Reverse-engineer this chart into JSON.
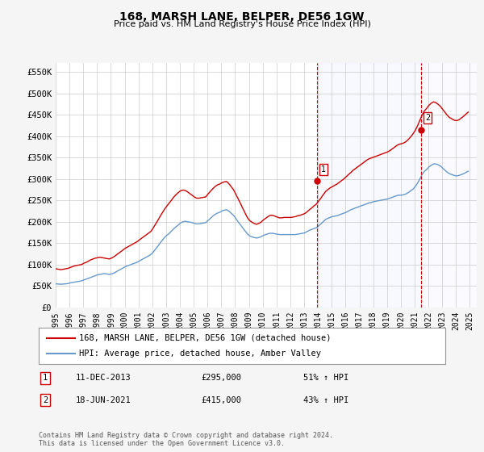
{
  "title": "168, MARSH LANE, BELPER, DE56 1GW",
  "subtitle": "Price paid vs. HM Land Registry's House Price Index (HPI)",
  "ylabel": "",
  "ylim": [
    0,
    570000
  ],
  "yticks": [
    0,
    50000,
    100000,
    150000,
    200000,
    250000,
    300000,
    350000,
    400000,
    450000,
    500000,
    550000
  ],
  "ytick_labels": [
    "£0",
    "£50K",
    "£100K",
    "£150K",
    "£200K",
    "£250K",
    "£300K",
    "£350K",
    "£400K",
    "£450K",
    "£500K",
    "£550K"
  ],
  "xlim_start": 1995.0,
  "xlim_end": 2025.5,
  "xtick_years": [
    1995,
    1996,
    1997,
    1998,
    1999,
    2000,
    2001,
    2002,
    2003,
    2004,
    2005,
    2006,
    2007,
    2008,
    2009,
    2010,
    2011,
    2012,
    2013,
    2014,
    2015,
    2016,
    2017,
    2018,
    2019,
    2020,
    2021,
    2022,
    2023,
    2024,
    2025
  ],
  "purchase1_x": 2013.94,
  "purchase1_y": 295000,
  "purchase1_label": "1",
  "purchase2_x": 2021.46,
  "purchase2_y": 415000,
  "purchase2_label": "2",
  "red_line_color": "#cc0000",
  "blue_line_color": "#6699cc",
  "vline_color": "#cc0000",
  "annotation_box_color": "#cc0000",
  "grid_color": "#cccccc",
  "background_chart": "#ffffff",
  "background_fig": "#f5f5f5",
  "legend_label_red": "168, MARSH LANE, BELPER, DE56 1GW (detached house)",
  "legend_label_blue": "HPI: Average price, detached house, Amber Valley",
  "annotation1_date": "11-DEC-2013",
  "annotation1_price": "£295,000",
  "annotation1_hpi": "51% ↑ HPI",
  "annotation2_date": "18-JUN-2021",
  "annotation2_price": "£415,000",
  "annotation2_hpi": "43% ↑ HPI",
  "footer": "Contains HM Land Registry data © Crown copyright and database right 2024.\nThis data is licensed under the Open Government Licence v3.0.",
  "hpi_data": {
    "years": [
      1995.04,
      1995.21,
      1995.38,
      1995.54,
      1995.71,
      1995.88,
      1996.04,
      1996.21,
      1996.38,
      1996.54,
      1996.71,
      1996.88,
      1997.04,
      1997.21,
      1997.38,
      1997.54,
      1997.71,
      1997.88,
      1998.04,
      1998.21,
      1998.38,
      1998.54,
      1998.71,
      1998.88,
      1999.04,
      1999.21,
      1999.38,
      1999.54,
      1999.71,
      1999.88,
      2000.04,
      2000.21,
      2000.38,
      2000.54,
      2000.71,
      2000.88,
      2001.04,
      2001.21,
      2001.38,
      2001.54,
      2001.71,
      2001.88,
      2002.04,
      2002.21,
      2002.38,
      2002.54,
      2002.71,
      2002.88,
      2003.04,
      2003.21,
      2003.38,
      2003.54,
      2003.71,
      2003.88,
      2004.04,
      2004.21,
      2004.38,
      2004.54,
      2004.71,
      2004.88,
      2005.04,
      2005.21,
      2005.38,
      2005.54,
      2005.71,
      2005.88,
      2006.04,
      2006.21,
      2006.38,
      2006.54,
      2006.71,
      2006.88,
      2007.04,
      2007.21,
      2007.38,
      2007.54,
      2007.71,
      2007.88,
      2008.04,
      2008.21,
      2008.38,
      2008.54,
      2008.71,
      2008.88,
      2009.04,
      2009.21,
      2009.38,
      2009.54,
      2009.71,
      2009.88,
      2010.04,
      2010.21,
      2010.38,
      2010.54,
      2010.71,
      2010.88,
      2011.04,
      2011.21,
      2011.38,
      2011.54,
      2011.71,
      2011.88,
      2012.04,
      2012.21,
      2012.38,
      2012.54,
      2012.71,
      2012.88,
      2013.04,
      2013.21,
      2013.38,
      2013.54,
      2013.71,
      2013.88,
      2014.04,
      2014.21,
      2014.38,
      2014.54,
      2014.71,
      2014.88,
      2015.04,
      2015.21,
      2015.38,
      2015.54,
      2015.71,
      2015.88,
      2016.04,
      2016.21,
      2016.38,
      2016.54,
      2016.71,
      2016.88,
      2017.04,
      2017.21,
      2017.38,
      2017.54,
      2017.71,
      2017.88,
      2018.04,
      2018.21,
      2018.38,
      2018.54,
      2018.71,
      2018.88,
      2019.04,
      2019.21,
      2019.38,
      2019.54,
      2019.71,
      2019.88,
      2020.04,
      2020.21,
      2020.38,
      2020.54,
      2020.71,
      2020.88,
      2021.04,
      2021.21,
      2021.38,
      2021.54,
      2021.71,
      2021.88,
      2022.04,
      2022.21,
      2022.38,
      2022.54,
      2022.71,
      2022.88,
      2023.04,
      2023.21,
      2023.38,
      2023.54,
      2023.71,
      2023.88,
      2024.04,
      2024.21,
      2024.38,
      2024.54,
      2024.71,
      2024.88
    ],
    "values": [
      55000,
      54500,
      54000,
      54500,
      55000,
      55500,
      57000,
      58000,
      59000,
      60000,
      61000,
      62000,
      64000,
      66000,
      68000,
      70000,
      72000,
      74000,
      76000,
      77000,
      78000,
      79000,
      78000,
      77000,
      78000,
      80000,
      83000,
      86000,
      89000,
      92000,
      95000,
      97000,
      99000,
      101000,
      103000,
      105000,
      108000,
      111000,
      114000,
      117000,
      120000,
      123000,
      128000,
      135000,
      142000,
      149000,
      156000,
      163000,
      168000,
      172000,
      178000,
      183000,
      188000,
      192000,
      197000,
      200000,
      201000,
      200000,
      199000,
      198000,
      196000,
      195000,
      195000,
      196000,
      197000,
      198000,
      203000,
      208000,
      213000,
      217000,
      220000,
      222000,
      225000,
      227000,
      228000,
      225000,
      220000,
      215000,
      208000,
      200000,
      193000,
      186000,
      179000,
      172000,
      167000,
      165000,
      163000,
      162000,
      163000,
      165000,
      168000,
      170000,
      172000,
      173000,
      173000,
      172000,
      171000,
      170000,
      170000,
      170000,
      170000,
      170000,
      170000,
      170000,
      170000,
      171000,
      172000,
      173000,
      174000,
      177000,
      180000,
      182000,
      184000,
      186000,
      190000,
      195000,
      200000,
      205000,
      208000,
      210000,
      212000,
      213000,
      214000,
      216000,
      218000,
      220000,
      222000,
      225000,
      228000,
      230000,
      232000,
      234000,
      236000,
      238000,
      240000,
      242000,
      244000,
      245000,
      247000,
      248000,
      249000,
      250000,
      251000,
      252000,
      253000,
      255000,
      257000,
      259000,
      261000,
      262000,
      262000,
      263000,
      265000,
      268000,
      272000,
      276000,
      282000,
      290000,
      300000,
      310000,
      318000,
      322000,
      328000,
      332000,
      335000,
      335000,
      333000,
      330000,
      325000,
      320000,
      315000,
      312000,
      310000,
      308000,
      307000,
      308000,
      310000,
      312000,
      315000,
      318000
    ]
  },
  "price_paid_data": {
    "years": [
      1995.04,
      1995.21,
      1995.38,
      1995.54,
      1995.71,
      1995.88,
      1996.04,
      1996.21,
      1996.38,
      1996.54,
      1996.71,
      1996.88,
      1997.04,
      1997.21,
      1997.38,
      1997.54,
      1997.71,
      1997.88,
      1998.04,
      1998.21,
      1998.38,
      1998.54,
      1998.71,
      1998.88,
      1999.04,
      1999.21,
      1999.38,
      1999.54,
      1999.71,
      1999.88,
      2000.04,
      2000.21,
      2000.38,
      2000.54,
      2000.71,
      2000.88,
      2001.04,
      2001.21,
      2001.38,
      2001.54,
      2001.71,
      2001.88,
      2002.04,
      2002.21,
      2002.38,
      2002.54,
      2002.71,
      2002.88,
      2003.04,
      2003.21,
      2003.38,
      2003.54,
      2003.71,
      2003.88,
      2004.04,
      2004.21,
      2004.38,
      2004.54,
      2004.71,
      2004.88,
      2005.04,
      2005.21,
      2005.38,
      2005.54,
      2005.71,
      2005.88,
      2006.04,
      2006.21,
      2006.38,
      2006.54,
      2006.71,
      2006.88,
      2007.04,
      2007.21,
      2007.38,
      2007.54,
      2007.71,
      2007.88,
      2008.04,
      2008.21,
      2008.38,
      2008.54,
      2008.71,
      2008.88,
      2009.04,
      2009.21,
      2009.38,
      2009.54,
      2009.71,
      2009.88,
      2010.04,
      2010.21,
      2010.38,
      2010.54,
      2010.71,
      2010.88,
      2011.04,
      2011.21,
      2011.38,
      2011.54,
      2011.71,
      2011.88,
      2012.04,
      2012.21,
      2012.38,
      2012.54,
      2012.71,
      2012.88,
      2013.04,
      2013.21,
      2013.38,
      2013.54,
      2013.71,
      2013.88,
      2014.04,
      2014.21,
      2014.38,
      2014.54,
      2014.71,
      2014.88,
      2015.04,
      2015.21,
      2015.38,
      2015.54,
      2015.71,
      2015.88,
      2016.04,
      2016.21,
      2016.38,
      2016.54,
      2016.71,
      2016.88,
      2017.04,
      2017.21,
      2017.38,
      2017.54,
      2017.71,
      2017.88,
      2018.04,
      2018.21,
      2018.38,
      2018.54,
      2018.71,
      2018.88,
      2019.04,
      2019.21,
      2019.38,
      2019.54,
      2019.71,
      2019.88,
      2020.04,
      2020.21,
      2020.38,
      2020.54,
      2020.71,
      2020.88,
      2021.04,
      2021.21,
      2021.38,
      2021.54,
      2021.71,
      2021.88,
      2022.04,
      2022.21,
      2022.38,
      2022.54,
      2022.71,
      2022.88,
      2023.04,
      2023.21,
      2023.38,
      2023.54,
      2023.71,
      2023.88,
      2024.04,
      2024.21,
      2024.38,
      2024.54,
      2024.71,
      2024.88
    ],
    "values": [
      90000,
      89000,
      88000,
      89000,
      90000,
      91000,
      93000,
      95000,
      97000,
      98000,
      99000,
      100000,
      103000,
      105000,
      108000,
      111000,
      113000,
      115000,
      116000,
      117000,
      116000,
      115000,
      114000,
      113000,
      115000,
      118000,
      122000,
      126000,
      130000,
      134000,
      138000,
      141000,
      144000,
      147000,
      150000,
      153000,
      157000,
      161000,
      165000,
      169000,
      173000,
      177000,
      184000,
      193000,
      202000,
      211000,
      220000,
      229000,
      236000,
      243000,
      250000,
      257000,
      263000,
      268000,
      272000,
      274000,
      273000,
      270000,
      266000,
      262000,
      258000,
      255000,
      255000,
      256000,
      257000,
      258000,
      265000,
      271000,
      277000,
      282000,
      286000,
      288000,
      291000,
      293000,
      294000,
      289000,
      282000,
      275000,
      265000,
      254000,
      243000,
      232000,
      221000,
      210000,
      203000,
      199000,
      196000,
      194000,
      196000,
      199000,
      204000,
      208000,
      212000,
      215000,
      215000,
      213000,
      211000,
      209000,
      209000,
      210000,
      210000,
      210000,
      210000,
      211000,
      212000,
      214000,
      215000,
      217000,
      219000,
      223000,
      228000,
      232000,
      237000,
      241000,
      248000,
      255000,
      263000,
      270000,
      275000,
      279000,
      282000,
      285000,
      288000,
      292000,
      296000,
      300000,
      305000,
      310000,
      315000,
      320000,
      324000,
      328000,
      332000,
      336000,
      340000,
      344000,
      347000,
      349000,
      351000,
      353000,
      355000,
      357000,
      359000,
      361000,
      363000,
      366000,
      370000,
      374000,
      378000,
      381000,
      382000,
      384000,
      387000,
      392000,
      398000,
      405000,
      413000,
      424000,
      437000,
      449000,
      459000,
      465000,
      472000,
      477000,
      480000,
      478000,
      474000,
      469000,
      462000,
      455000,
      448000,
      443000,
      440000,
      437000,
      436000,
      438000,
      442000,
      446000,
      451000,
      456000
    ]
  }
}
